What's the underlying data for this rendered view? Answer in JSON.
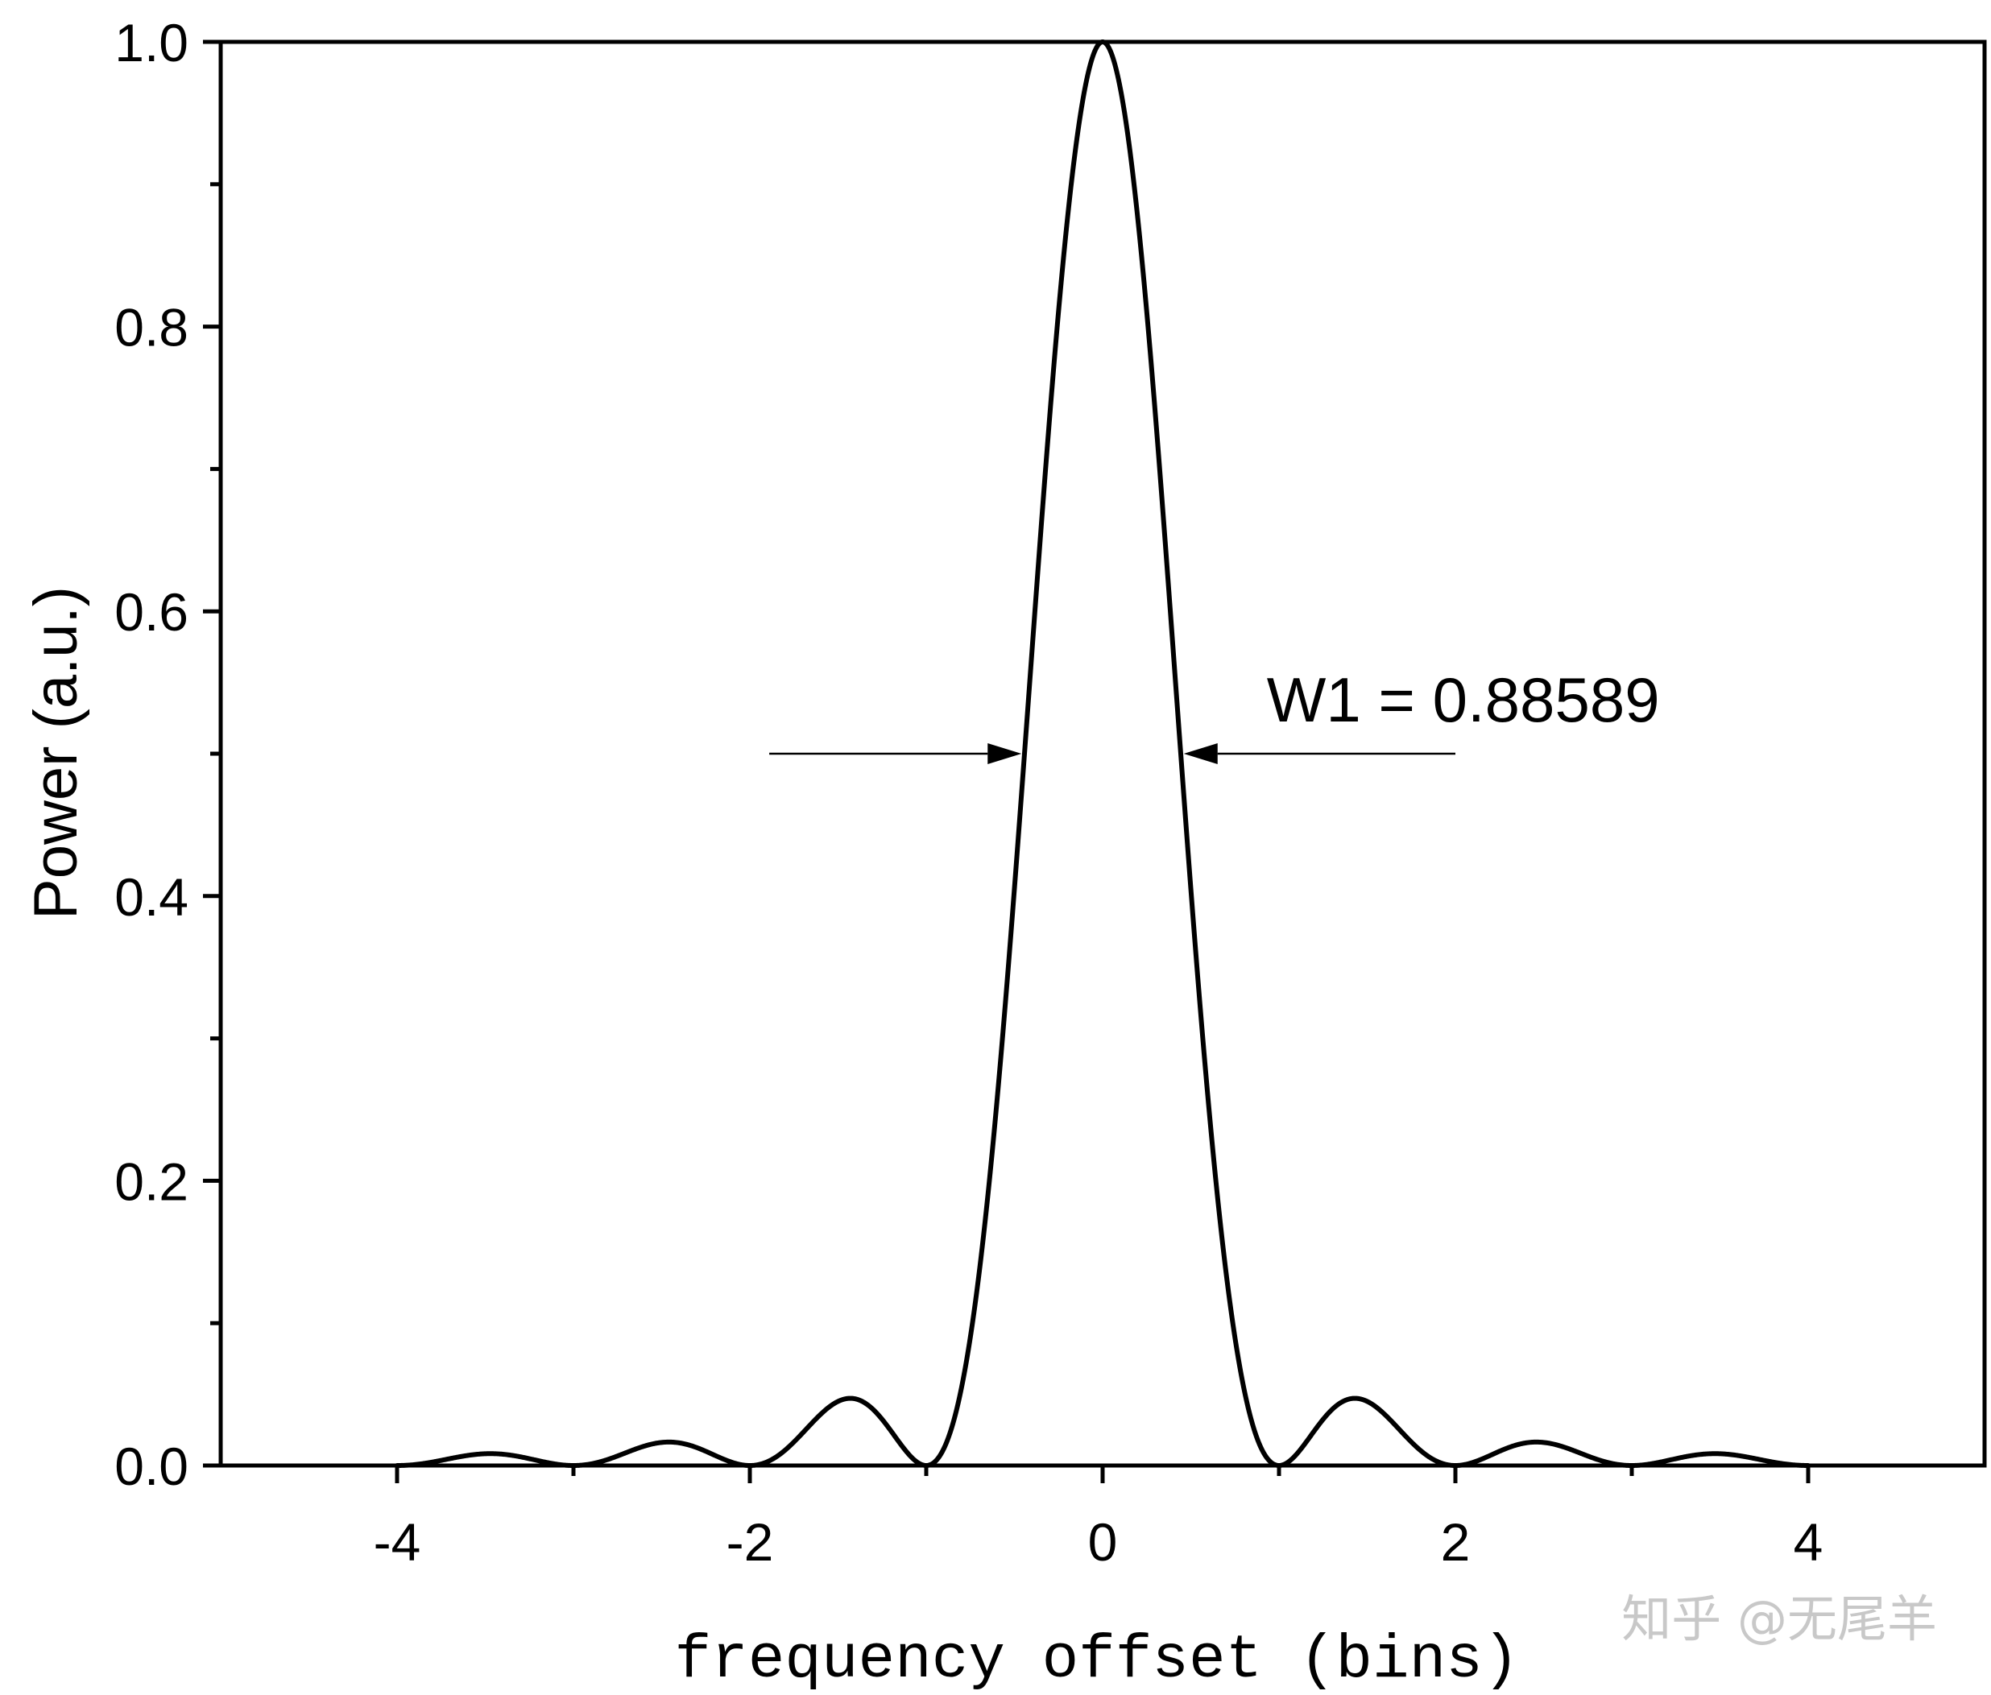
{
  "chart_data": {
    "type": "line",
    "title": "",
    "xlabel": "frequency offset (bins)",
    "ylabel": "Power (a.u.)",
    "xlim": [
      -5,
      5
    ],
    "ylim": [
      0,
      1.0
    ],
    "x_ticks": [
      -4,
      -2,
      0,
      2,
      4
    ],
    "x_tick_labels": [
      "-4",
      "-2",
      "0",
      "2",
      "4"
    ],
    "x_minor_ticks": [
      -3,
      -1,
      1,
      3
    ],
    "y_ticks": [
      0.0,
      0.2,
      0.4,
      0.6,
      0.8,
      1.0
    ],
    "y_tick_labels": [
      "0.0",
      "0.2",
      "0.4",
      "0.6",
      "0.8",
      "1.0"
    ],
    "grid": false,
    "series": [
      {
        "color": "#000000",
        "x_range": [
          -4,
          4
        ],
        "x": [
          -4.0,
          -3.5,
          -3.0,
          -2.5,
          -2.0,
          -1.5,
          -1.43,
          -1.0,
          -0.5,
          -0.44,
          0.0,
          0.44,
          0.5,
          1.0,
          1.43,
          1.5,
          2.0,
          2.5,
          3.0,
          3.5,
          4.0
        ],
        "y": [
          0.0,
          0.008,
          0.0,
          0.016,
          0.0,
          0.045,
          0.047,
          0.0,
          0.405,
          0.5,
          1.0,
          0.5,
          0.405,
          0.0,
          0.047,
          0.045,
          0.0,
          0.016,
          0.0,
          0.008,
          0.0
        ]
      }
    ],
    "annotations": [
      {
        "text": "W1 = 0.88589",
        "y": 0.5,
        "arrow_left_x": [
          -1.89,
          -0.46
        ],
        "arrow_right_x": [
          0.46,
          2.0
        ]
      }
    ]
  },
  "watermark": {
    "text": "知乎 @无尾羊"
  }
}
